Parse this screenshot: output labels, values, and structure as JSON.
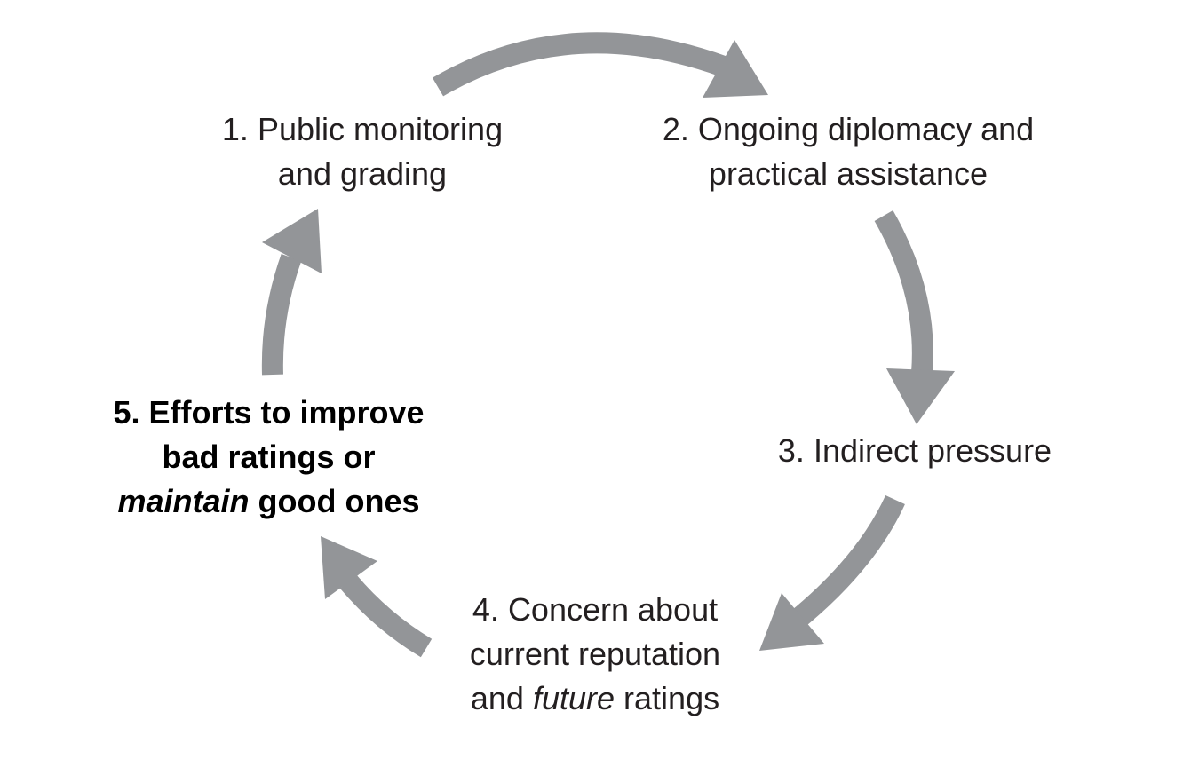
{
  "diagram": {
    "arrow_color": "#939598",
    "text_color": "#231f20",
    "steps": [
      {
        "number": "1.",
        "lines": [
          "Public monitoring",
          "and grading"
        ]
      },
      {
        "number": "2.",
        "lines": [
          "Ongoing diplomacy and",
          "practical assistance"
        ]
      },
      {
        "number": "3.",
        "lines": [
          "Indirect pressure"
        ]
      },
      {
        "number": "4.",
        "lines": [
          "Concern about",
          "current reputation"
        ],
        "line3_pre": "and ",
        "line3_em": "future",
        "line3_post": " ratings"
      },
      {
        "number": "5.",
        "lines": [
          "Efforts to improve",
          "bad ratings or"
        ],
        "line3_em": "maintain",
        "line3_post": " good ones"
      }
    ]
  }
}
